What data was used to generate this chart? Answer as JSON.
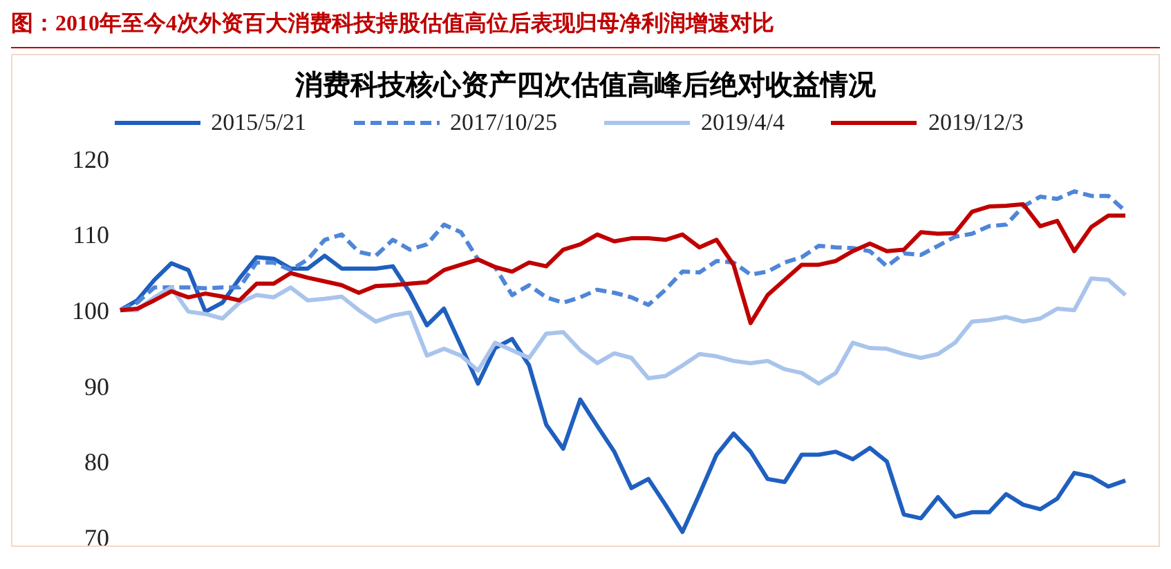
{
  "chart_data": {
    "type": "line",
    "title": "图：2010年至今4次外资百大消费科技持股估值高位后表现归母净利润增速对比",
    "subtitle": "消费科技核心资产四次估值高峰后绝对收益情况",
    "categories": [
      null,
      null,
      null,
      null,
      null,
      null,
      null,
      null,
      null,
      null,
      null,
      null,
      null,
      null,
      null,
      null,
      null,
      null,
      null,
      null,
      null,
      null,
      null,
      null,
      null,
      null,
      null,
      null,
      null,
      null,
      null,
      null,
      null,
      null,
      null,
      null,
      null,
      null,
      null,
      null,
      null,
      null,
      null,
      null,
      null,
      null,
      null,
      null,
      null,
      null,
      null,
      null,
      null,
      null,
      null,
      null,
      null,
      null,
      null,
      null
    ],
    "series": [
      {
        "name": "2015/5/21",
        "color": "#1f5fbf",
        "line_style": "solid",
        "values": [
          100,
          101.3,
          104,
          106.2,
          105.3,
          99.8,
          101,
          104.2,
          107,
          106.8,
          105.5,
          105.5,
          107.2,
          105.5,
          105.5,
          105.5,
          105.8,
          102.3,
          98,
          100.2,
          95.3,
          90.3,
          95,
          96.2,
          92.7,
          84.9,
          81.7,
          88.2,
          84.7,
          81.3,
          76.5,
          77.7,
          74.3,
          70.7,
          75.7,
          80.9,
          83.7,
          81.3,
          77.7,
          77.3,
          80.9,
          80.9,
          81.3,
          80.3,
          81.8,
          80,
          73,
          72.5,
          75.3,
          72.7,
          73.3,
          73.3,
          75.7,
          74.3,
          73.7,
          75.1,
          78.5,
          78,
          76.7,
          77.5
        ]
      },
      {
        "name": "2017/10/25",
        "color": "#4f86d9",
        "line_style": "dashed",
        "values": [
          100,
          101,
          103,
          103,
          103,
          102.9,
          103,
          103,
          106.3,
          106.3,
          105.3,
          106.7,
          109.3,
          110,
          107.7,
          107.2,
          109.3,
          108,
          108.7,
          111.3,
          110.3,
          106.7,
          105.7,
          102,
          103.3,
          101.7,
          101,
          101.7,
          102.7,
          102.3,
          101.7,
          100.7,
          102.7,
          105.1,
          105,
          106.5,
          106.3,
          104.7,
          105.1,
          106.3,
          107,
          108.5,
          108.3,
          108.2,
          107.8,
          105.8,
          107.5,
          107.3,
          108.5,
          109.7,
          110.1,
          111.1,
          111.3,
          113.7,
          115,
          114.7,
          115.7,
          115.1,
          115.1,
          113.1
        ]
      },
      {
        "name": "2019/4/4",
        "color": "#a9c4ec",
        "line_style": "solid",
        "values": [
          100,
          100,
          101.7,
          103,
          99.8,
          99.5,
          98.9,
          101,
          102,
          101.7,
          103,
          101.3,
          101.5,
          101.8,
          100,
          98.5,
          99.3,
          99.7,
          94,
          94.9,
          94,
          92,
          95.7,
          94.7,
          93.7,
          96.9,
          97.1,
          94.7,
          93,
          94.3,
          93.7,
          91,
          91.3,
          92.7,
          94.2,
          93.9,
          93.3,
          93,
          93.3,
          92.2,
          91.7,
          90.3,
          91.7,
          95.7,
          95,
          94.9,
          94.2,
          93.7,
          94.2,
          95.7,
          98.5,
          98.7,
          99.1,
          98.5,
          98.9,
          100.2,
          100,
          104.2,
          104,
          102
        ]
      },
      {
        "name": "2019/12/3",
        "color": "#c00000",
        "line_style": "solid",
        "values": [
          100,
          100.2,
          101.3,
          102.5,
          101.7,
          102.2,
          101.8,
          101.3,
          103.5,
          103.5,
          104.9,
          104.3,
          103.8,
          103.3,
          102.3,
          103.2,
          103.3,
          103.5,
          103.7,
          105.3,
          106,
          106.7,
          105.7,
          105.1,
          106.3,
          105.8,
          108,
          108.7,
          110,
          109.1,
          109.5,
          109.5,
          109.3,
          110,
          108.3,
          109.3,
          106,
          98.3,
          102,
          104,
          106,
          106,
          106.5,
          107.8,
          108.8,
          107.8,
          108,
          110.3,
          110.1,
          110.2,
          113,
          113.7,
          113.8,
          114,
          111.1,
          111.8,
          107.8,
          111,
          112.5,
          112.5
        ]
      }
    ],
    "ylim": [
      70,
      120
    ],
    "yticks": [
      70,
      80,
      90,
      100,
      110,
      120
    ],
    "grid": false,
    "legend": "top",
    "marker": "none",
    "tick_labels": "y"
  }
}
